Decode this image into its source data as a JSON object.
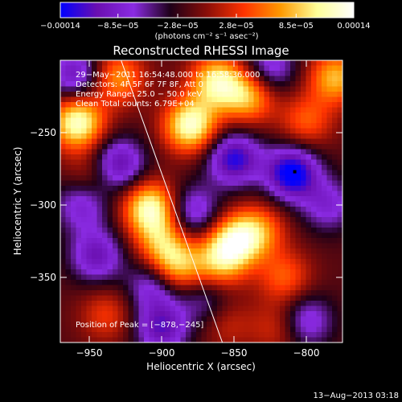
{
  "chart_data": {
    "type": "heatmap",
    "title": "Reconstructed RHESSI Image",
    "xlabel": "Heliocentric X (arcsec)",
    "ylabel": "Heliocentric Y (arcsec)",
    "xlim": [
      -970,
      -775
    ],
    "ylim": [
      -395,
      -200
    ],
    "x_ticks": [
      -950,
      -900,
      -850,
      -800
    ],
    "x_tick_labels": [
      "−950",
      "−900",
      "−850",
      "−800"
    ],
    "y_ticks": [
      -250,
      -300,
      -350
    ],
    "y_tick_labels": [
      "−250",
      "−300",
      "−350"
    ],
    "colorbar": {
      "min": -0.00014,
      "max": 0.00014,
      "ticks": [
        -0.00014,
        -8.5e-05,
        -2.8e-05,
        2.8e-05,
        8.5e-05,
        0.00014
      ],
      "tick_labels": [
        "−0.00014",
        "−8.5e−05",
        "−2.8e−05",
        "2.8e−05",
        "8.5e−05",
        "0.00014"
      ],
      "units_label": "(photons cm⁻² s⁻¹ asec⁻²)",
      "colormap": [
        "#0000ff",
        "#6a0fb0",
        "#8a2be2",
        "#1e0018",
        "#8a0e08",
        "#ff3300",
        "#ff9900",
        "#ffff99",
        "#ffffff"
      ]
    },
    "info_lines": [
      "29−May−2011 16:54:48.000 to 16:58:36.000",
      "Detectors: 4F 5F 6F 7F 8F, Att 0",
      "Energy Range: 25.0 − 50.0 keV",
      "Clean    Total counts: 6.79E+04"
    ],
    "peak_label": "Position of Peak = [−878,−245]",
    "timestamp": "13−Aug−2013 03:18",
    "limb_line": {
      "x": [
        -928,
        -858
      ],
      "y": [
        -200,
        -395
      ]
    },
    "marker_point": {
      "x": -808,
      "y": -277
    },
    "blobs": [
      {
        "x": -958,
        "y": -243,
        "v": 1.0
      },
      {
        "x": -930,
        "y": -212,
        "v": 0.6
      },
      {
        "x": -880,
        "y": -245,
        "v": 1.0
      },
      {
        "x": -862,
        "y": -215,
        "v": 0.85
      },
      {
        "x": -840,
        "y": -225,
        "v": 0.7
      },
      {
        "x": -908,
        "y": -302,
        "v": 0.95
      },
      {
        "x": -900,
        "y": -325,
        "v": 0.55
      },
      {
        "x": -890,
        "y": -343,
        "v": 0.75
      },
      {
        "x": -860,
        "y": -340,
        "v": 0.6
      },
      {
        "x": -850,
        "y": -325,
        "v": 0.8
      },
      {
        "x": -833,
        "y": -318,
        "v": 0.55
      },
      {
        "x": -815,
        "y": -350,
        "v": 0.45
      },
      {
        "x": -780,
        "y": -212,
        "v": 0.7
      },
      {
        "x": -800,
        "y": -242,
        "v": 0.45
      },
      {
        "x": -948,
        "y": -280,
        "v": 0.3
      },
      {
        "x": -938,
        "y": -376,
        "v": 0.35
      },
      {
        "x": -855,
        "y": -382,
        "v": 0.25
      },
      {
        "x": -820,
        "y": -385,
        "v": 0.3
      },
      {
        "x": -810,
        "y": -278,
        "v": -0.95
      },
      {
        "x": -850,
        "y": -268,
        "v": -0.8
      },
      {
        "x": -930,
        "y": -272,
        "v": -0.7
      },
      {
        "x": -945,
        "y": -335,
        "v": -0.6
      },
      {
        "x": -900,
        "y": -385,
        "v": -0.65
      },
      {
        "x": -905,
        "y": -355,
        "v": -0.55
      },
      {
        "x": -878,
        "y": -305,
        "v": -0.55
      },
      {
        "x": -800,
        "y": -380,
        "v": -0.5
      },
      {
        "x": -785,
        "y": -300,
        "v": -0.45
      },
      {
        "x": -825,
        "y": -205,
        "v": -0.5
      },
      {
        "x": -960,
        "y": -210,
        "v": -0.6
      },
      {
        "x": -955,
        "y": -300,
        "v": -0.5
      },
      {
        "x": -870,
        "y": -365,
        "v": -0.35
      }
    ]
  }
}
